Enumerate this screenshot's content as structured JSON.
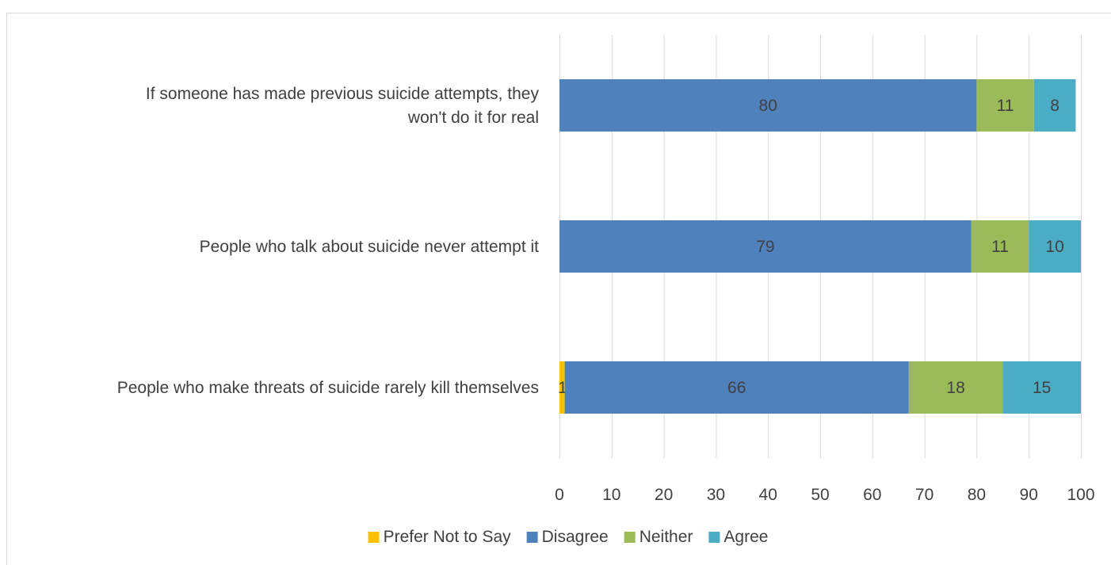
{
  "chart_data": {
    "type": "bar",
    "orientation": "horizontal",
    "stacked": true,
    "title": "",
    "xlabel": "",
    "ylabel": "",
    "xlim": [
      0,
      100
    ],
    "x_ticks": [
      0,
      10,
      20,
      30,
      40,
      50,
      60,
      70,
      80,
      90,
      100
    ],
    "grid": "vertical",
    "legend_position": "bottom",
    "categories": [
      [
        "If someone has made previous suicide attempts, they",
        "won't do it for real"
      ],
      [
        "People who talk about suicide never attempt it"
      ],
      [
        "People who make threats of suicide rarely kill themselves"
      ]
    ],
    "series": [
      {
        "name": "Prefer Not to Say",
        "color": "#FFC000",
        "values": [
          0,
          0,
          1
        ],
        "labels": [
          "",
          "",
          "1"
        ]
      },
      {
        "name": "Disagree",
        "color": "#4F81BD",
        "values": [
          80,
          79,
          66
        ],
        "labels": [
          "80",
          "79",
          "66"
        ]
      },
      {
        "name": "Neither",
        "color": "#9BBB59",
        "values": [
          11,
          11,
          18
        ],
        "labels": [
          "11",
          "11",
          "18"
        ]
      },
      {
        "name": "Agree",
        "color": "#4BACC6",
        "values": [
          8,
          10,
          15
        ],
        "labels": [
          "8",
          "10",
          "15"
        ]
      }
    ]
  }
}
